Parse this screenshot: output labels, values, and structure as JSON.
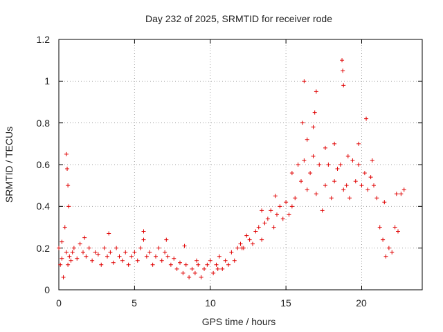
{
  "chart_data": {
    "type": "scatter",
    "title": "Day 232 of 2025, SRMTID for receiver rode",
    "xlabel": "GPS time / hours",
    "ylabel": "SRMTID / TECUs",
    "xlim": [
      0,
      24
    ],
    "ylim": [
      0,
      1.2
    ],
    "xticks": [
      0,
      5,
      10,
      15,
      20
    ],
    "xtick_labels": [
      "0",
      "5",
      "10",
      "15",
      "20"
    ],
    "yticks": [
      0,
      0.2,
      0.4,
      0.6,
      0.8,
      1.0,
      1.2
    ],
    "ytick_labels": [
      "0",
      "0.2",
      "0.4",
      "0.6",
      "0.8",
      "1",
      "1.2"
    ],
    "grid": true,
    "marker": "+",
    "marker_color": "#e00000",
    "series": [
      {
        "name": "SRMTID",
        "x": [
          0.0,
          0.1,
          0.2,
          0.3,
          0.4,
          0.5,
          0.6,
          0.7,
          0.8,
          0.9,
          1.0,
          1.2,
          1.4,
          1.6,
          1.8,
          2.0,
          2.2,
          2.4,
          2.6,
          2.8,
          3.0,
          3.2,
          3.4,
          3.6,
          3.8,
          4.0,
          4.2,
          4.4,
          4.6,
          4.8,
          5.0,
          5.2,
          5.4,
          5.6,
          5.8,
          6.0,
          6.2,
          6.4,
          6.6,
          6.8,
          7.0,
          7.2,
          7.4,
          7.6,
          7.8,
          8.0,
          8.2,
          8.4,
          8.6,
          8.8,
          9.0,
          9.2,
          9.4,
          9.6,
          9.8,
          10.0,
          10.2,
          10.4,
          10.6,
          10.8,
          11.0,
          11.2,
          11.4,
          11.6,
          11.8,
          12.0,
          12.2,
          12.4,
          12.6,
          12.8,
          13.0,
          13.2,
          13.4,
          13.6,
          13.8,
          14.0,
          14.2,
          14.4,
          14.6,
          14.8,
          15.0,
          15.2,
          15.4,
          15.6,
          15.8,
          16.0,
          16.2,
          16.4,
          16.6,
          16.8,
          17.0,
          17.2,
          17.4,
          17.6,
          17.8,
          18.0,
          18.2,
          18.4,
          18.6,
          18.8,
          19.0,
          19.2,
          19.4,
          19.6,
          19.8,
          20.0,
          20.2,
          20.4,
          20.6,
          20.8,
          21.0,
          21.2,
          21.4,
          21.6,
          21.8,
          22.0,
          22.2,
          22.4,
          22.6,
          22.8,
          0.5,
          0.55,
          0.6,
          0.65,
          16.1,
          16.2,
          16.8,
          16.9,
          17.0,
          18.7,
          18.75,
          18.8,
          20.3,
          0.2,
          1.7,
          3.3,
          5.6,
          7.1,
          8.3,
          9.1,
          10.5,
          12.1,
          13.4,
          14.3,
          15.4,
          16.4,
          17.6,
          18.2,
          19.1,
          19.8,
          20.7,
          21.5,
          22.3
        ],
        "y": [
          0.2,
          0.12,
          0.15,
          0.06,
          0.3,
          0.18,
          0.12,
          0.16,
          0.14,
          0.18,
          0.2,
          0.15,
          0.22,
          0.18,
          0.16,
          0.2,
          0.14,
          0.18,
          0.17,
          0.12,
          0.2,
          0.16,
          0.18,
          0.13,
          0.2,
          0.16,
          0.14,
          0.18,
          0.12,
          0.16,
          0.18,
          0.14,
          0.2,
          0.24,
          0.16,
          0.18,
          0.12,
          0.16,
          0.2,
          0.14,
          0.18,
          0.16,
          0.12,
          0.15,
          0.1,
          0.13,
          0.08,
          0.12,
          0.06,
          0.1,
          0.08,
          0.12,
          0.06,
          0.1,
          0.12,
          0.14,
          0.08,
          0.12,
          0.16,
          0.1,
          0.14,
          0.12,
          0.18,
          0.14,
          0.2,
          0.22,
          0.2,
          0.26,
          0.24,
          0.22,
          0.28,
          0.3,
          0.24,
          0.32,
          0.34,
          0.38,
          0.3,
          0.36,
          0.4,
          0.34,
          0.42,
          0.36,
          0.4,
          0.44,
          0.6,
          0.52,
          0.62,
          0.48,
          0.56,
          0.64,
          0.46,
          0.6,
          0.38,
          0.5,
          0.6,
          0.44,
          0.52,
          0.58,
          0.6,
          0.48,
          0.5,
          0.44,
          0.62,
          0.52,
          0.6,
          0.5,
          0.56,
          0.48,
          0.54,
          0.5,
          0.44,
          0.3,
          0.24,
          0.16,
          0.2,
          0.18,
          0.3,
          0.28,
          0.46,
          0.48,
          0.65,
          0.58,
          0.5,
          0.4,
          0.8,
          1.0,
          0.78,
          0.85,
          0.95,
          1.1,
          1.05,
          0.98,
          0.82,
          0.23,
          0.25,
          0.27,
          0.28,
          0.24,
          0.21,
          0.14,
          0.1,
          0.2,
          0.38,
          0.45,
          0.56,
          0.72,
          0.68,
          0.7,
          0.64,
          0.7,
          0.62,
          0.42,
          0.46
        ]
      }
    ]
  }
}
